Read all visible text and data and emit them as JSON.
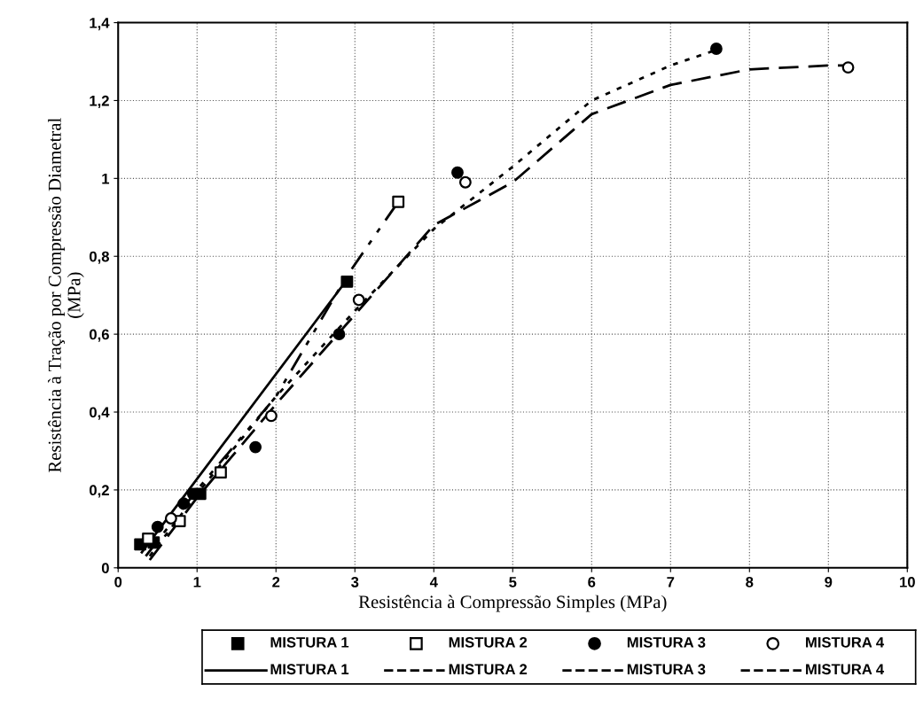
{
  "chart_data": {
    "type": "scatter",
    "xlabel": "Resistência à Compressão Simples (MPa)",
    "ylabel": "Resistência à Tração por Compressão Diametral\n(MPa)",
    "xlim": [
      0,
      10
    ],
    "ylim": [
      0,
      1.4
    ],
    "xticks": [
      0,
      1,
      2,
      3,
      4,
      5,
      6,
      7,
      8,
      9,
      10
    ],
    "yticks": [
      0,
      {
        "value": 0.2,
        "label": "0,2"
      },
      {
        "value": 0.4,
        "label": "0,4"
      },
      {
        "value": 0.6,
        "label": "0,6"
      },
      {
        "value": 0.8,
        "label": "0,8"
      },
      1,
      {
        "value": 1.2,
        "label": "1,2"
      },
      {
        "value": 1.4,
        "label": "1,4"
      }
    ],
    "grid": true,
    "legend": "bottom",
    "series": [
      {
        "name": "MISTURA 1",
        "type": "scatter",
        "marker": "square",
        "color": "#000000",
        "x": [
          0.28,
          0.45,
          1.04,
          2.9
        ],
        "values": [
          0.06,
          0.065,
          0.19,
          0.735
        ]
      },
      {
        "name": "MISTURA 1",
        "type": "line",
        "line_style": "solid",
        "color": "#000000",
        "x": [
          0.3,
          2.9
        ],
        "values": [
          0.04,
          0.74
        ]
      },
      {
        "name": "MISTURA 2",
        "type": "scatter",
        "marker": "square-open",
        "color": "#000000",
        "x": [
          0.38,
          0.78,
          1.3,
          3.55
        ],
        "values": [
          0.075,
          0.12,
          0.245,
          0.94
        ]
      },
      {
        "name": "MISTURA 2",
        "type": "line",
        "line_style": "dashdot",
        "color": "#000000",
        "x": [
          0.35,
          1.0,
          2.0,
          2.9,
          3.55
        ],
        "values": [
          0.03,
          0.2,
          0.44,
          0.75,
          0.94
        ]
      },
      {
        "name": "MISTURA 3",
        "type": "scatter",
        "marker": "circle",
        "color": "#000000",
        "x": [
          0.5,
          0.83,
          0.95,
          1.74,
          2.8,
          4.3,
          7.58
        ],
        "values": [
          0.105,
          0.165,
          0.19,
          0.31,
          0.6,
          1.015,
          1.333
        ]
      },
      {
        "name": "MISTURA 3",
        "type": "line",
        "line_style": "dotted",
        "color": "#000000",
        "x": [
          0.4,
          1.0,
          2.0,
          3.0,
          4.0,
          5.0,
          6.0,
          7.0,
          7.58
        ],
        "values": [
          0.03,
          0.19,
          0.44,
          0.66,
          0.87,
          1.03,
          1.2,
          1.29,
          1.33
        ]
      },
      {
        "name": "MISTURA 4",
        "type": "scatter",
        "marker": "circle-open",
        "color": "#000000",
        "x": [
          0.67,
          1.94,
          3.05,
          4.4,
          9.25
        ],
        "values": [
          0.127,
          0.39,
          0.688,
          0.99,
          1.285
        ]
      },
      {
        "name": "MISTURA 4",
        "type": "line",
        "line_style": "dashed",
        "color": "#000000",
        "x": [
          0.4,
          1.0,
          2.0,
          3.0,
          4.0,
          5.0,
          6.0,
          7.0,
          8.0,
          9.0,
          9.25
        ],
        "values": [
          0.02,
          0.18,
          0.42,
          0.65,
          0.88,
          0.99,
          1.165,
          1.24,
          1.28,
          1.29,
          1.29
        ]
      }
    ]
  }
}
